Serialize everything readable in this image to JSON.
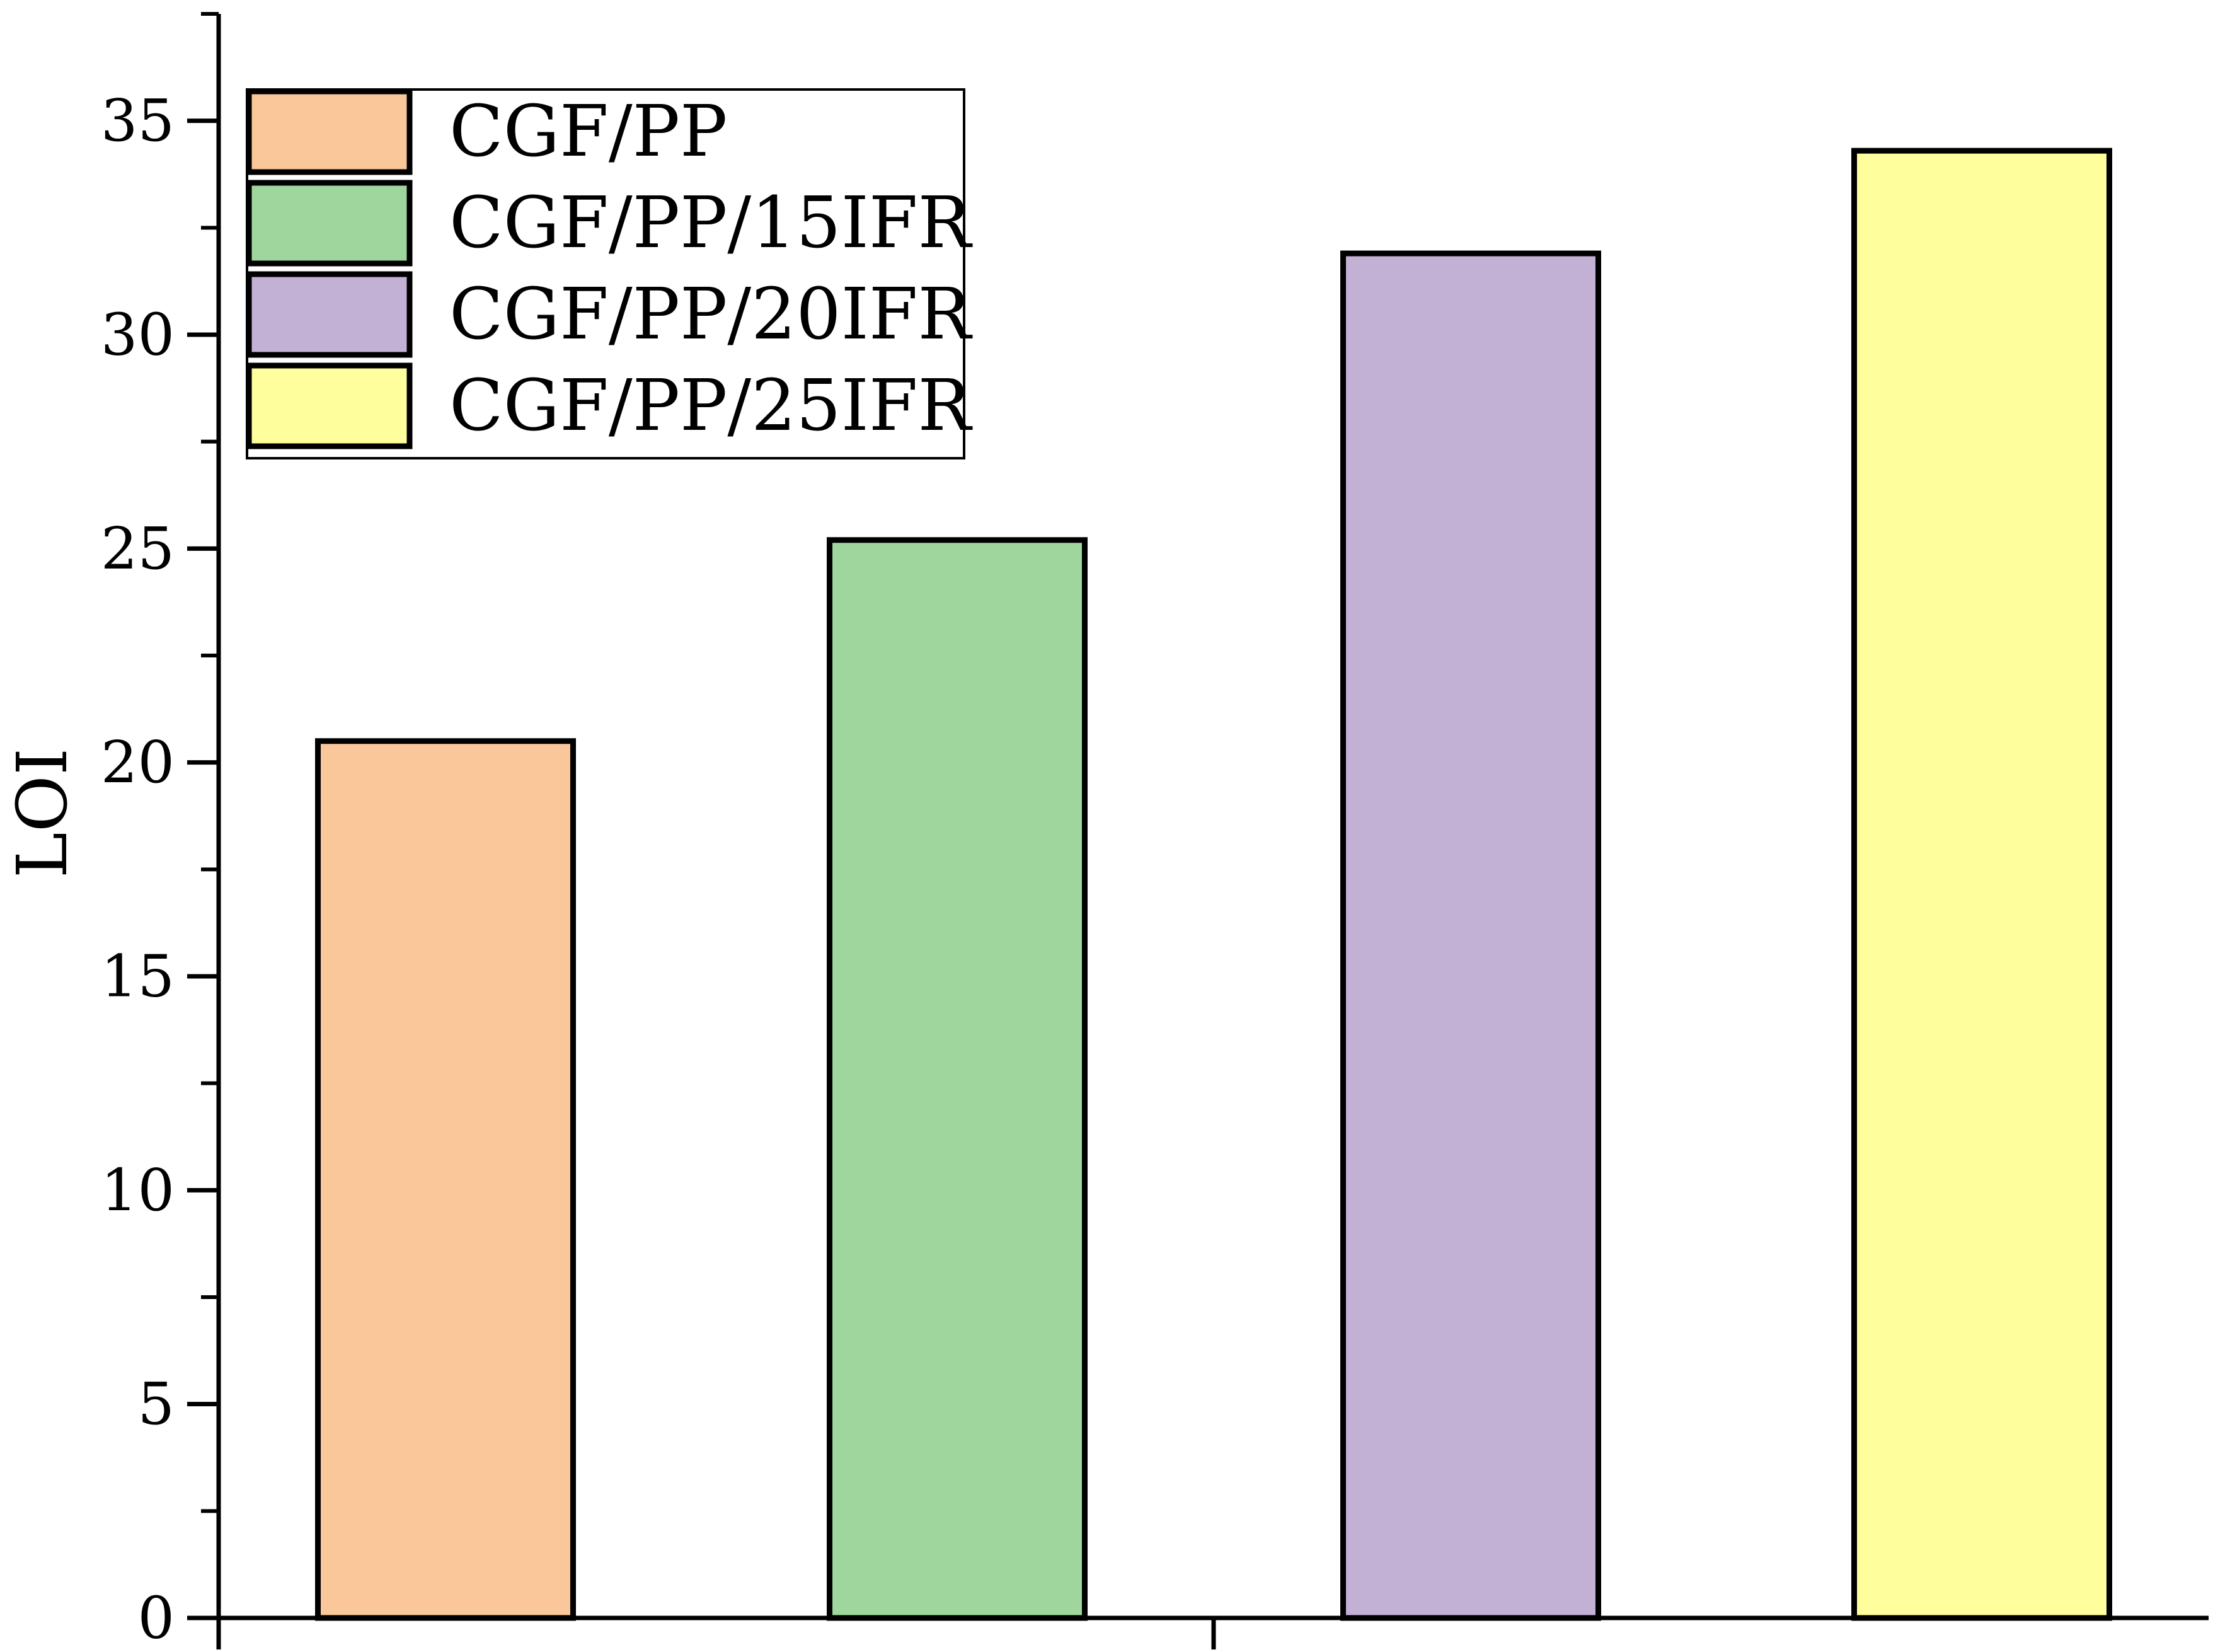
{
  "chart_data": {
    "type": "bar",
    "title": "",
    "xlabel": "",
    "ylabel": "LOI",
    "ylim": [
      0,
      37.5
    ],
    "y_major_ticks": [
      0,
      5,
      10,
      15,
      20,
      25,
      30,
      35
    ],
    "y_minor_step": 2.5,
    "grid": false,
    "legend_position": "top-left",
    "categories": [
      "CGF/PP",
      "CGF/PP/15IFR",
      "CGF/PP/20IFR",
      "CGF/PP/25IFR"
    ],
    "values": [
      20.5,
      25.2,
      31.9,
      34.3
    ],
    "colors": [
      "#F9C799",
      "#9FD69D",
      "#C2B1D5",
      "#FEFE9C"
    ],
    "series": [
      {
        "name": "CGF/PP",
        "value": 20.5,
        "color": "#F9C799"
      },
      {
        "name": "CGF/PP/15IFR",
        "value": 25.2,
        "color": "#9FD69D"
      },
      {
        "name": "CGF/PP/20IFR",
        "value": 31.9,
        "color": "#C2B1D5"
      },
      {
        "name": "CGF/PP/25IFR",
        "value": 34.3,
        "color": "#FEFE9C"
      }
    ]
  }
}
